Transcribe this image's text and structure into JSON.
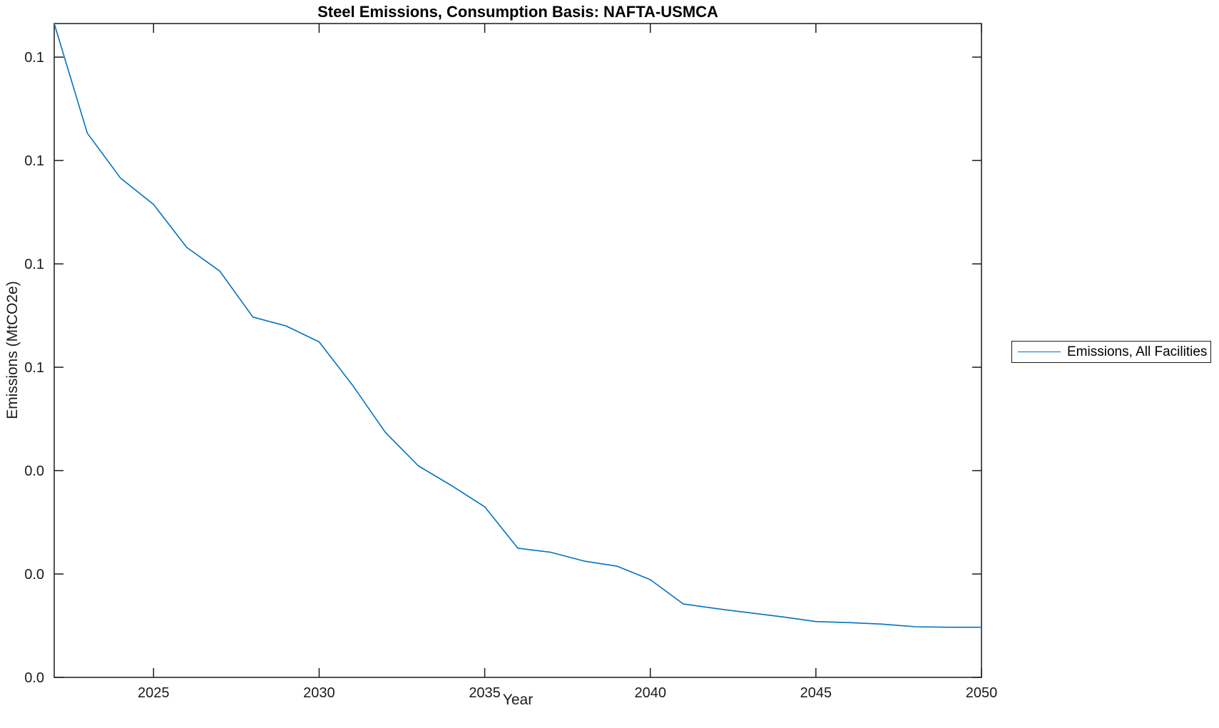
{
  "chart_data": {
    "type": "line",
    "title": "Steel Emissions, Consumption Basis: NAFTA-USMCA",
    "xlabel": "Year",
    "ylabel": "Emissions (MtCO2e)",
    "xlim": [
      2022,
      2050
    ],
    "ylim": [
      0.0,
      0.1265
    ],
    "grid": false,
    "box": true,
    "tick_direction": "in",
    "line_color": "#0072BD",
    "axis_color": "#1a1a1a",
    "legend": {
      "position": "outside-right",
      "entries": [
        "Emissions, All Facilities"
      ]
    },
    "xticks": [
      {
        "value": 2025,
        "label": "2025"
      },
      {
        "value": 2030,
        "label": "2030"
      },
      {
        "value": 2035,
        "label": "2035"
      },
      {
        "value": 2040,
        "label": "2040"
      },
      {
        "value": 2045,
        "label": "2045"
      },
      {
        "value": 2050,
        "label": "2050"
      }
    ],
    "yticks": [
      {
        "value": 0.12,
        "label": "0.1"
      },
      {
        "value": 0.1,
        "label": "0.1"
      },
      {
        "value": 0.08,
        "label": "0.1"
      },
      {
        "value": 0.06,
        "label": "0.1"
      },
      {
        "value": 0.04,
        "label": "0.0"
      },
      {
        "value": 0.02,
        "label": "0.0"
      },
      {
        "value": 0.0,
        "label": "0.0"
      }
    ],
    "series": [
      {
        "name": "Emissions, All Facilities",
        "x": [
          2022,
          2023,
          2024,
          2025,
          2026,
          2027,
          2028,
          2029,
          2030,
          2031,
          2032,
          2033,
          2034,
          2035,
          2036,
          2037,
          2038,
          2039,
          2040,
          2041,
          2042,
          2043,
          2044,
          2045,
          2046,
          2047,
          2048,
          2049,
          2050
        ],
        "values": [
          0.1265,
          0.1053,
          0.0966,
          0.0915,
          0.0832,
          0.0786,
          0.0697,
          0.068,
          0.0649,
          0.0566,
          0.0474,
          0.0409,
          0.0371,
          0.033,
          0.025,
          0.0242,
          0.0225,
          0.0215,
          0.0189,
          0.0142,
          0.0133,
          0.0125,
          0.0117,
          0.0108,
          0.0106,
          0.0103,
          0.0098,
          0.0097,
          0.0097
        ]
      }
    ]
  }
}
